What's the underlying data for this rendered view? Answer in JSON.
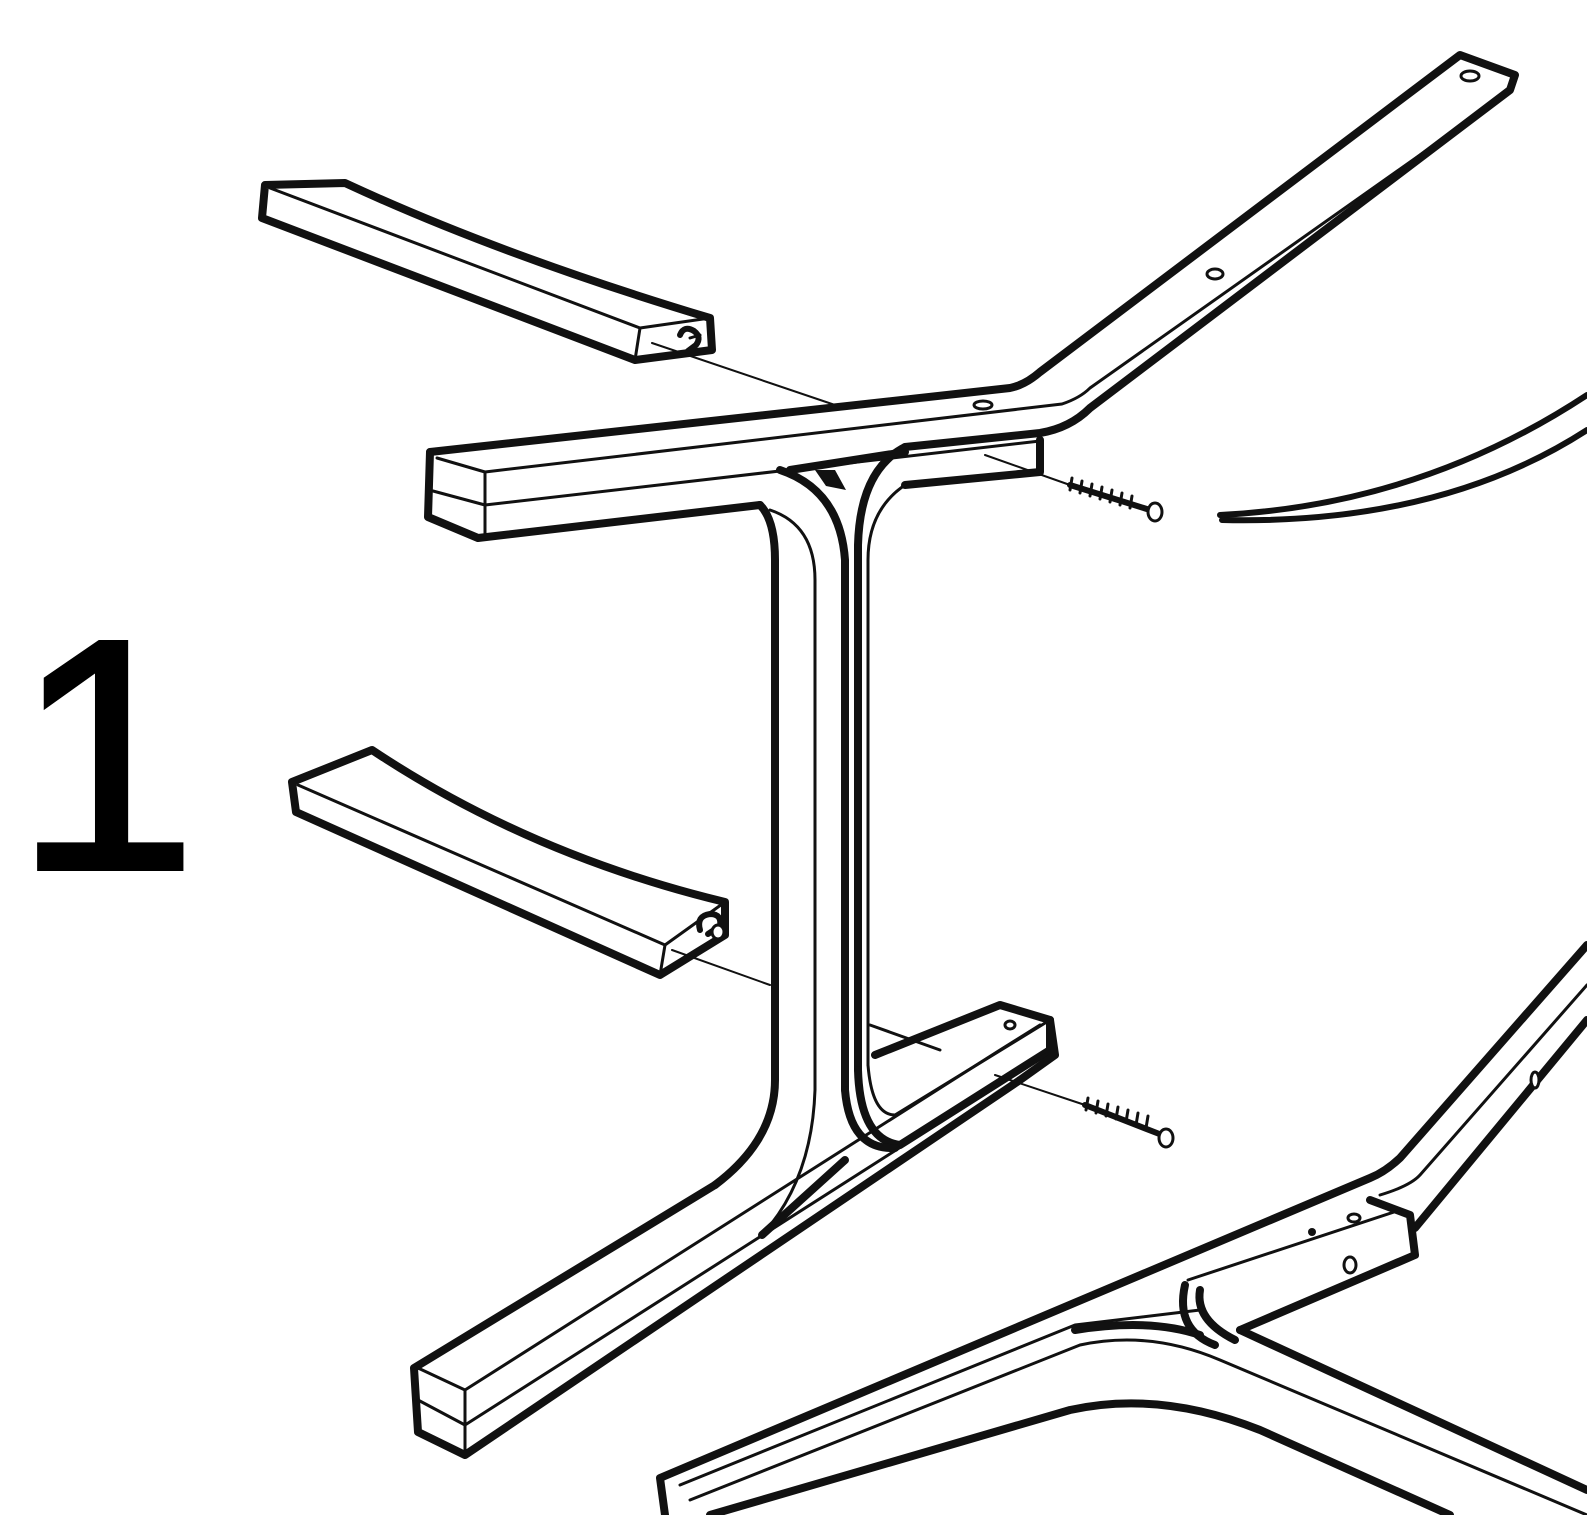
{
  "step": {
    "number": "1"
  },
  "parts": {
    "frame": "assembly-frame",
    "rails": [
      "upper-cross-rail",
      "lower-cross-rail"
    ],
    "fasteners": [
      "upper-bolt",
      "lower-bolt",
      "upper-dowel",
      "lower-dowel"
    ]
  },
  "colors": {
    "line": "#111111",
    "background": "#ffffff"
  }
}
